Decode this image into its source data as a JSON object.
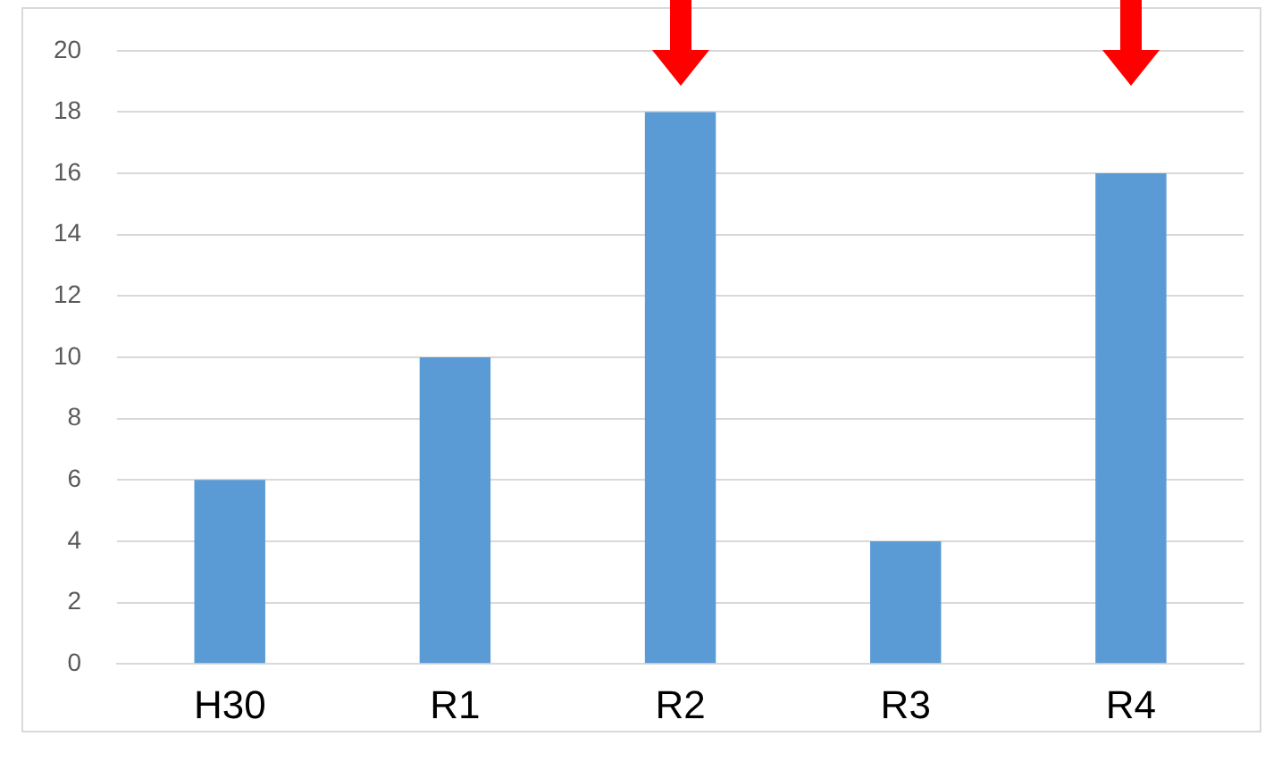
{
  "chart_data": {
    "type": "bar",
    "categories": [
      "H30",
      "R1",
      "R2",
      "R3",
      "R4"
    ],
    "values": [
      6,
      10,
      18,
      4,
      16
    ],
    "color": "#5b9bd5",
    "ylim": [
      0,
      20
    ],
    "yticks": [
      0,
      2,
      4,
      6,
      8,
      10,
      12,
      14,
      16,
      18,
      20
    ],
    "grid": "y"
  }
}
